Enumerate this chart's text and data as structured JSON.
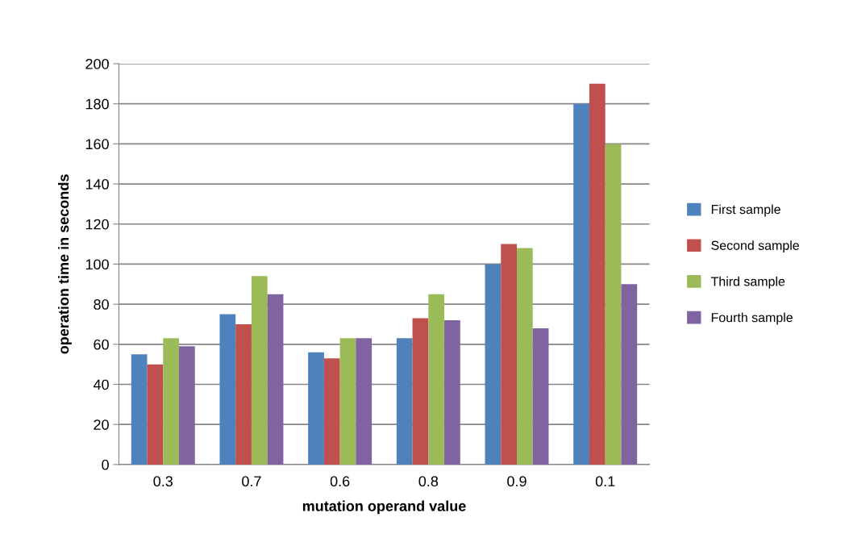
{
  "chart_data": {
    "type": "bar",
    "xlabel": "mutation operand value",
    "ylabel": "operation time in seconds",
    "categories": [
      "0.3",
      "0.7",
      "0.6",
      "0.8",
      "0.9",
      "0.1"
    ],
    "series": [
      {
        "name": "First sample",
        "color": "#4f81bd",
        "values": [
          55,
          75,
          56,
          63,
          100,
          180
        ]
      },
      {
        "name": "Second sample",
        "color": "#c0504d",
        "values": [
          50,
          70,
          53,
          73,
          110,
          190
        ]
      },
      {
        "name": "Third sample",
        "color": "#9bbb59",
        "values": [
          63,
          94,
          63,
          85,
          108,
          160
        ]
      },
      {
        "name": "Fourth sample",
        "color": "#8064a2",
        "values": [
          59,
          85,
          63,
          72,
          68,
          90
        ]
      }
    ],
    "ylim": [
      0,
      200
    ],
    "yticks": [
      0,
      20,
      40,
      60,
      80,
      100,
      120,
      140,
      160,
      180,
      200
    ],
    "grid": "y",
    "legend": "right"
  }
}
